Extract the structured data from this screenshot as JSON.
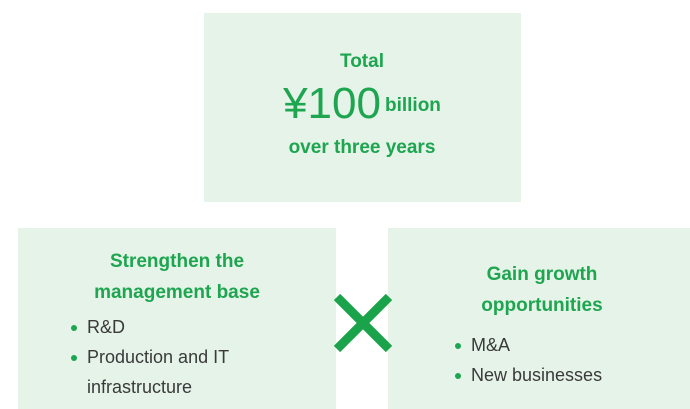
{
  "top_box": {
    "line1": "Total",
    "amount": "¥100",
    "unit": "billion",
    "line3": "over three years"
  },
  "left_box": {
    "title_lines": [
      "Strengthen the",
      "management base"
    ],
    "bullets": [
      "R&D",
      "Production and IT",
      "infrastructure"
    ]
  },
  "right_box": {
    "title_lines": [
      "Gain growth",
      "opportunities"
    ],
    "bullets": [
      "M&A",
      "New businesses"
    ]
  }
}
